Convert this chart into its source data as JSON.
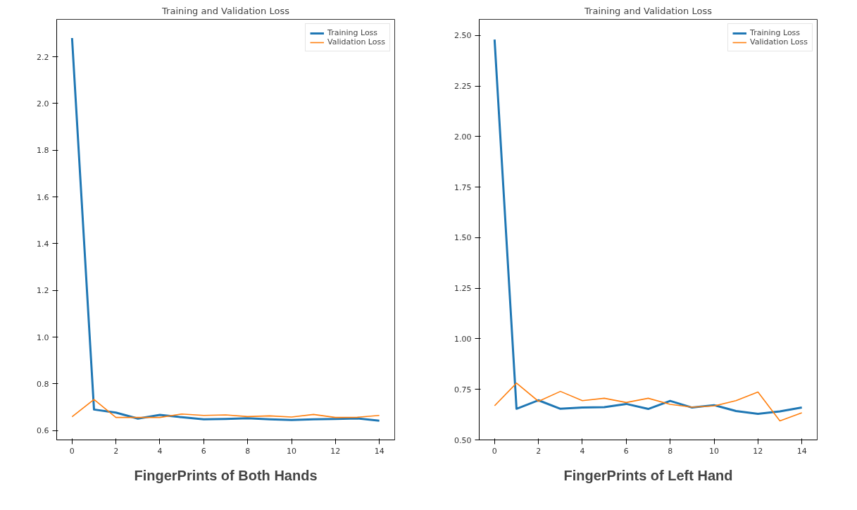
{
  "chart_data": [
    {
      "type": "line",
      "title": "Training and Validation Loss",
      "annotations": [
        "FingerPrints of Both Hands"
      ],
      "x": [
        0,
        1,
        2,
        3,
        4,
        5,
        6,
        7,
        8,
        9,
        10,
        11,
        12,
        13,
        14
      ],
      "series": [
        {
          "name": "Training Loss",
          "color": "#1f77b4",
          "values": [
            2.28,
            0.69,
            0.677,
            0.651,
            0.667,
            0.657,
            0.648,
            0.65,
            0.653,
            0.648,
            0.645,
            0.648,
            0.65,
            0.652,
            0.642
          ]
        },
        {
          "name": "Validation Loss",
          "color": "#ff7f0e",
          "values": [
            0.659,
            0.733,
            0.656,
            0.656,
            0.656,
            0.671,
            0.665,
            0.667,
            0.66,
            0.663,
            0.658,
            0.669,
            0.656,
            0.657,
            0.665
          ]
        }
      ],
      "xlim": [
        -0.7,
        14.7
      ],
      "ylim": [
        0.56,
        2.36
      ],
      "xticks": [
        0,
        2,
        4,
        6,
        8,
        10,
        12,
        14
      ],
      "yticks": [
        {
          "value": 0.6,
          "label": "0.6"
        },
        {
          "value": 0.8,
          "label": "0.8"
        },
        {
          "value": 1.0,
          "label": "1.0"
        },
        {
          "value": 1.2,
          "label": "1.2"
        },
        {
          "value": 1.4,
          "label": "1.4"
        },
        {
          "value": 1.6,
          "label": "1.6"
        },
        {
          "value": 1.8,
          "label": "1.8"
        },
        {
          "value": 2.0,
          "label": "2.0"
        },
        {
          "value": 2.2,
          "label": "2.2"
        }
      ],
      "grid": false,
      "legend": "top right",
      "marker": "none",
      "line_style": "solid"
    },
    {
      "type": "line",
      "title": "Training and Validation Loss",
      "annotations": [
        "FingerPrints of Left Hand"
      ],
      "x": [
        0,
        1,
        2,
        3,
        4,
        5,
        6,
        7,
        8,
        9,
        10,
        11,
        12,
        13,
        14
      ],
      "series": [
        {
          "name": "Training Loss",
          "color": "#1f77b4",
          "values": [
            2.48,
            0.654,
            0.696,
            0.654,
            0.66,
            0.662,
            0.678,
            0.653,
            0.693,
            0.66,
            0.672,
            0.643,
            0.629,
            0.641,
            0.66
          ]
        },
        {
          "name": "Validation Loss",
          "color": "#ff7f0e",
          "values": [
            0.669,
            0.781,
            0.691,
            0.74,
            0.694,
            0.706,
            0.685,
            0.706,
            0.676,
            0.662,
            0.668,
            0.694,
            0.737,
            0.594,
            0.634
          ]
        }
      ],
      "xlim": [
        -0.7,
        14.7
      ],
      "ylim": [
        0.5,
        2.58
      ],
      "xticks": [
        0,
        2,
        4,
        6,
        8,
        10,
        12,
        14
      ],
      "yticks": [
        {
          "value": 0.5,
          "label": "0.50"
        },
        {
          "value": 0.75,
          "label": "0.75"
        },
        {
          "value": 1.0,
          "label": "1.00"
        },
        {
          "value": 1.25,
          "label": "1.25"
        },
        {
          "value": 1.5,
          "label": "1.50"
        },
        {
          "value": 1.75,
          "label": "1.75"
        },
        {
          "value": 2.0,
          "label": "2.00"
        },
        {
          "value": 2.25,
          "label": "2.25"
        },
        {
          "value": 2.5,
          "label": "2.50"
        }
      ],
      "grid": false,
      "legend": "top right",
      "marker": "none",
      "line_style": "solid"
    }
  ]
}
